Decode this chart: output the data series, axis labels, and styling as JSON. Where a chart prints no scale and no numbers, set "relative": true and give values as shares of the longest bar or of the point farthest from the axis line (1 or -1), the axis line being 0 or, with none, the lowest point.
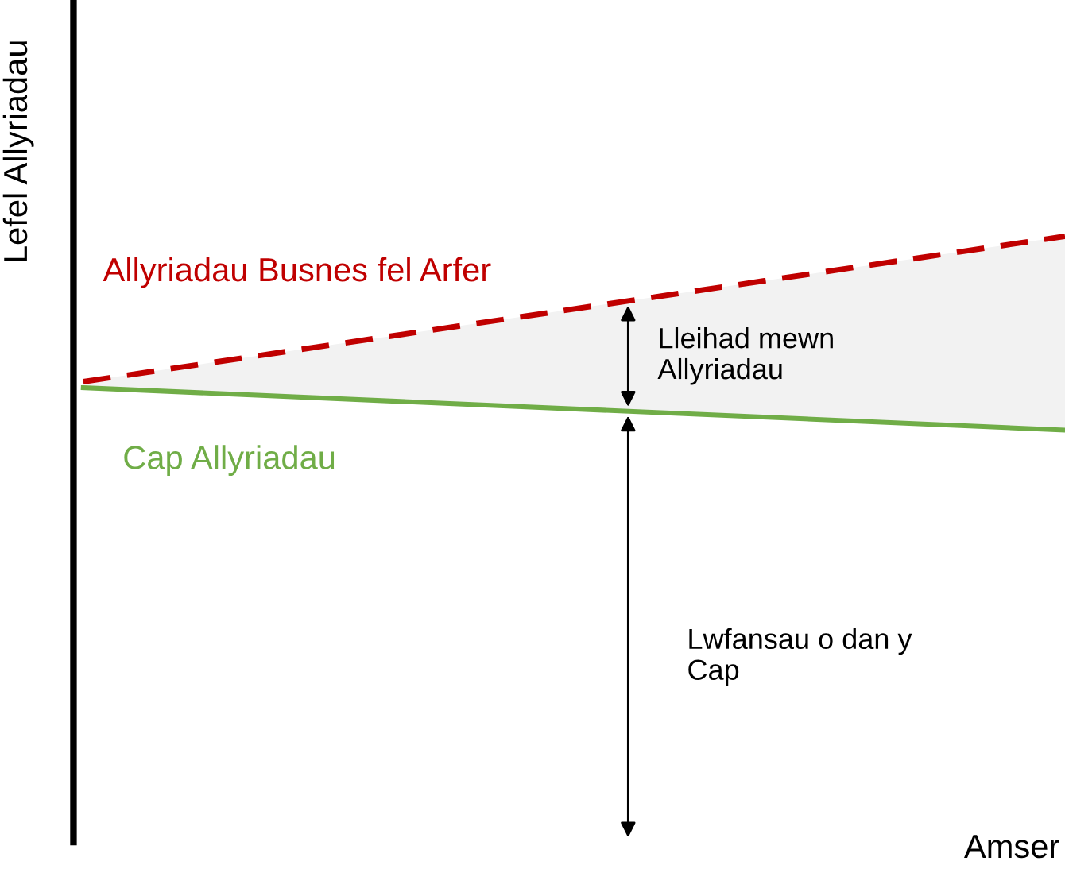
{
  "chart_data": {
    "type": "line",
    "relative": true,
    "ylabel": "Lefel Allyriadau",
    "xlabel": "Amser",
    "categories": [
      null,
      null
    ],
    "series": [
      {
        "name": "Allyriadau Busnes fel Arfer",
        "color": "#c00000",
        "line_style": "dashed",
        "values": [
          0.76,
          1.0
        ],
        "lower": [
          0.75,
          0.68
        ],
        "upper": [
          0.76,
          1.0
        ]
      },
      {
        "name": "Cap Allyriadau",
        "color": "#70ad47",
        "line_style": "solid",
        "values": [
          0.75,
          0.68
        ]
      }
    ],
    "annotations": [
      "Lleihad mewn\nAllyriadau",
      "Lwfansau o dan y\nCap"
    ]
  }
}
